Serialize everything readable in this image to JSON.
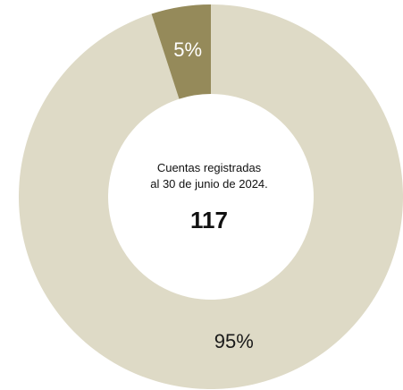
{
  "chart_data": {
    "type": "pie",
    "donut": true,
    "slices": [
      {
        "label": "95%",
        "value": 95,
        "color": "#dedac6",
        "label_color": "#1a1a1a"
      },
      {
        "label": "5%",
        "value": 5,
        "color": "#958a5a",
        "label_color": "#ffffff"
      }
    ],
    "center": {
      "caption_line1": "Cuentas registradas",
      "caption_line2": "al 30 de junio de 2024.",
      "total": "117"
    },
    "legend": "none"
  }
}
